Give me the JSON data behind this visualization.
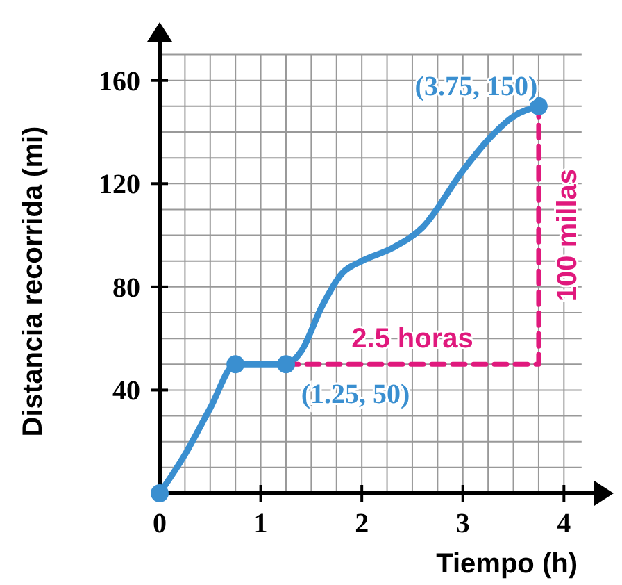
{
  "chart_data": {
    "type": "line",
    "xlabel": "Tiempo (h)",
    "ylabel": "Distancia recorrida (mi)",
    "xlim": [
      0,
      4.3
    ],
    "ylim": [
      0,
      175
    ],
    "xticks": [
      0,
      1,
      2,
      3,
      4
    ],
    "yticks": [
      40,
      80,
      120,
      160
    ],
    "grid": true,
    "series": [
      {
        "color": "#3a8fd0",
        "marker": "none",
        "line_style": "solid",
        "x": [
          0,
          0.25,
          0.5,
          0.75,
          1.25,
          1.4,
          1.6,
          1.8,
          2,
          2.3,
          2.6,
          3,
          3.25,
          3.5,
          3.75
        ],
        "values": [
          0,
          15,
          33,
          50,
          50,
          55,
          72,
          85,
          90,
          95,
          103,
          125,
          137,
          146,
          150
        ]
      },
      {
        "type": "scatter",
        "color": "#3a8fd0",
        "marker": "circle",
        "x": [
          0,
          0.75,
          1.25,
          3.75
        ],
        "values": [
          0,
          50,
          50,
          150
        ]
      },
      {
        "type": "line",
        "color": "#e0197d",
        "marker": "none",
        "line_style": "dashed",
        "x": [
          1.25,
          3.75,
          3.75
        ],
        "values": [
          50,
          50,
          150
        ]
      }
    ],
    "annotations": [
      {
        "text": "(3.75, 150)",
        "x": 3.75,
        "y": 150
      },
      {
        "text": "(1.25, 50)",
        "x": 1.25,
        "y": 50
      },
      {
        "text": "2.5 horas",
        "x": 2.5,
        "y": 50
      },
      {
        "text": "100 millas",
        "x": 3.75,
        "y": 100
      }
    ]
  }
}
